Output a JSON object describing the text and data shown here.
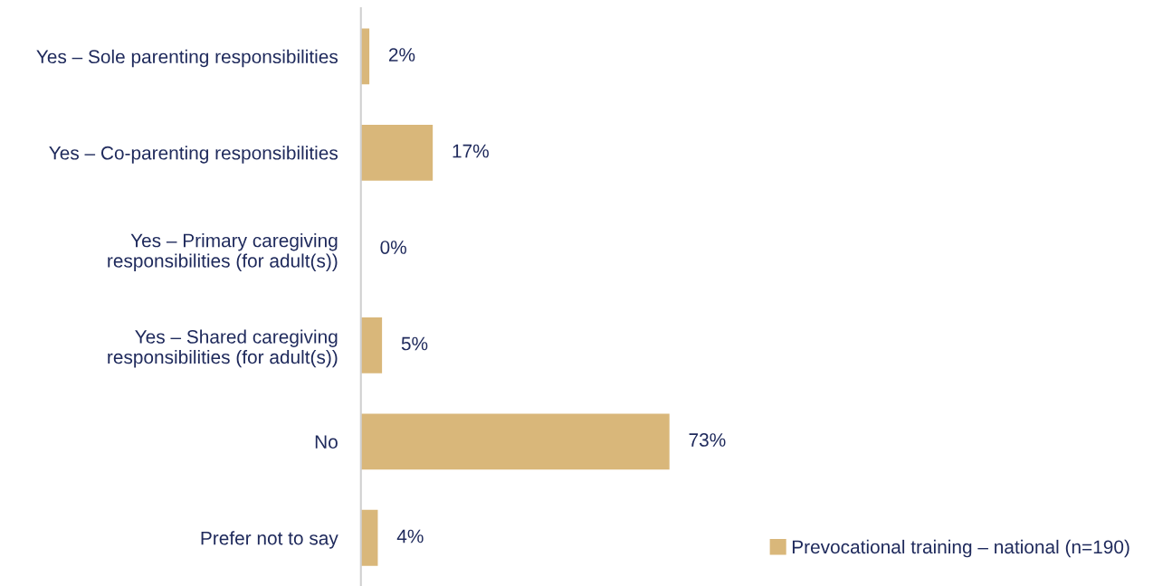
{
  "chart_data": {
    "type": "bar",
    "orientation": "horizontal",
    "categories": [
      "Yes – Sole parenting responsibilities",
      "Yes – Co-parenting responsibilities",
      "Yes – Primary caregiving\nresponsibilities (for adult(s))",
      "Yes – Shared caregiving\nresponsibilities (for adult(s))",
      "No",
      "Prefer not to say"
    ],
    "series": [
      {
        "name": "Prevocational training – national (n=190)",
        "color": "#d9b77a",
        "values": [
          2,
          17,
          0,
          5,
          73,
          4
        ],
        "value_labels": [
          "2%",
          "17%",
          "0%",
          "5%",
          "73%",
          "4%"
        ]
      }
    ],
    "tick_labels": "y",
    "grid": false,
    "legend": "bottom right"
  }
}
